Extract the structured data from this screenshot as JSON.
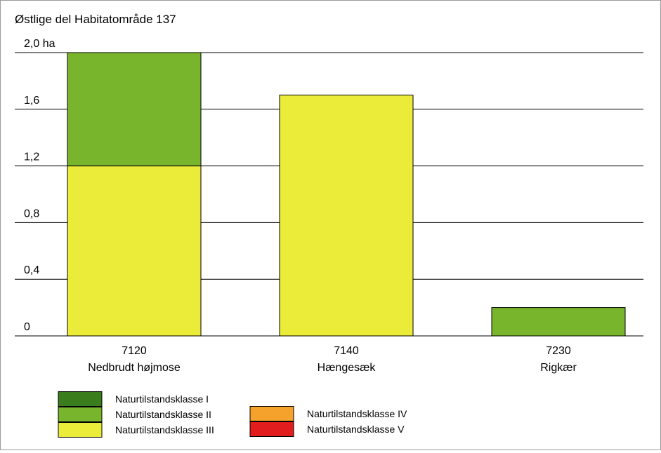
{
  "chart_data": {
    "type": "bar",
    "stacked": true,
    "title": "Østlige del Habitatområde 137",
    "ylim": [
      0,
      2.0
    ],
    "y_ticks": [
      {
        "value": 0,
        "label": "0"
      },
      {
        "value": 0.4,
        "label": "0,4"
      },
      {
        "value": 0.8,
        "label": "0,8"
      },
      {
        "value": 1.2,
        "label": "1,2"
      },
      {
        "value": 1.6,
        "label": "1,6"
      },
      {
        "value": 2.0,
        "label": "2,0 ha"
      }
    ],
    "grid": true,
    "categories": [
      {
        "code": "7120",
        "name": "Nedbrudt højmose"
      },
      {
        "code": "7140",
        "name": "Hængesæk"
      },
      {
        "code": "7230",
        "name": "Rigkær"
      }
    ],
    "series": [
      {
        "name": "Naturtilstandsklasse I",
        "color": "#3a7d1c",
        "values": [
          0,
          0,
          0
        ]
      },
      {
        "name": "Naturtilstandsklasse II",
        "color": "#79b52c",
        "values": [
          0.8,
          0,
          0.2
        ]
      },
      {
        "name": "Naturtilstandsklasse III",
        "color": "#ebeb3a",
        "values": [
          1.2,
          1.7,
          0
        ]
      },
      {
        "name": "Naturtilstandsklasse IV",
        "color": "#f4a22c",
        "values": [
          0,
          0,
          0
        ]
      },
      {
        "name": "Naturtilstandsklasse V",
        "color": "#e21d1d",
        "values": [
          0,
          0,
          0
        ]
      }
    ],
    "legend_position": "bottom-left"
  }
}
